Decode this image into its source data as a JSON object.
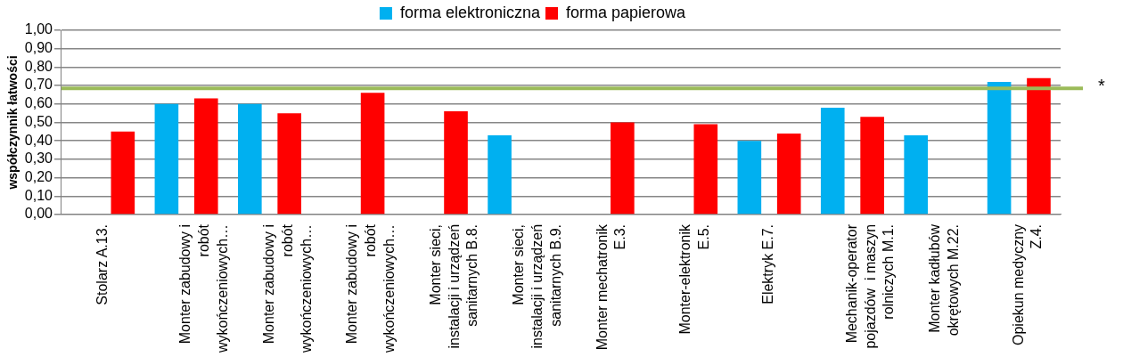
{
  "chart_data": {
    "type": "bar",
    "ylabel": "współczynnik łatwości",
    "categories": [
      "Stolarz A.13.",
      "Monter zabudowy i\nrobót\nwykończeniowych…",
      "Monter zabudowy i\nrobót\nwykończeniowych…",
      "Monter zabudowy i\nrobót\nwykończeniowych…",
      "Monter sieci,\ninstalacji i urządzeń\nsanitarnych B.8.",
      "Monter sieci,\ninstalacji i urządzeń\nsanitarnych B.9.",
      "Monter mechatronik\nE.3.",
      "Monter-elektronik\nE.5.",
      "Elektryk E.7.",
      "Mechanik-operator\npojazdów  i maszyn\nrolniczych M.1.",
      "Monter kadłubów\nokrętowych M.22.",
      "Opiekun medyczny\nZ.4."
    ],
    "series": [
      {
        "name": "forma elektroniczna",
        "color": "#00b0f0",
        "values": [
          null,
          0.6,
          0.6,
          null,
          null,
          0.43,
          null,
          null,
          0.4,
          0.58,
          0.43,
          0.72
        ]
      },
      {
        "name": "forma papierowa",
        "color": "#ff0000",
        "values": [
          0.45,
          0.63,
          0.55,
          0.66,
          0.56,
          null,
          0.5,
          0.49,
          0.44,
          0.53,
          null,
          0.74
        ]
      }
    ],
    "ylim": [
      0,
      1
    ],
    "yticks": [
      {
        "value": 0,
        "label": "0,00"
      },
      {
        "value": 0.1,
        "label": "0,10"
      },
      {
        "value": 0.2,
        "label": "0,20"
      },
      {
        "value": 0.3,
        "label": "0,30"
      },
      {
        "value": 0.4,
        "label": "0,40"
      },
      {
        "value": 0.5,
        "label": "0,50"
      },
      {
        "value": 0.6,
        "label": "0,60"
      },
      {
        "value": 0.7,
        "label": "0,70"
      },
      {
        "value": 0.8,
        "label": "0,80"
      },
      {
        "value": 0.9,
        "label": "0,90"
      },
      {
        "value": 1,
        "label": "1,00"
      }
    ],
    "ref_lines": [
      {
        "axis": "y",
        "value": 0.685,
        "label": "*",
        "color": "#9bbb59"
      }
    ],
    "grid": "y",
    "legend": "top"
  }
}
